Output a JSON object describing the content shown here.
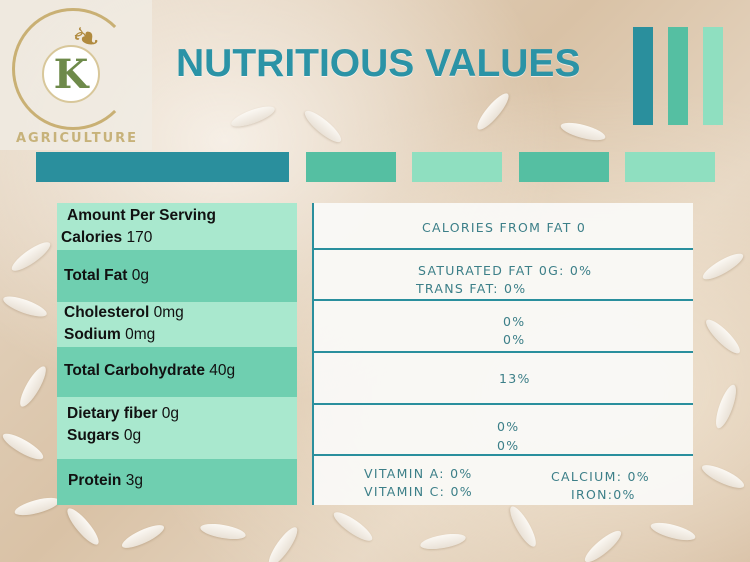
{
  "logo": {
    "letter": "K",
    "text": "AGRICULTURE"
  },
  "title": "NUTRITIOUS VALUES",
  "colors": {
    "teal_dark": "#2a8f9d",
    "teal_mid": "#55bfa2",
    "teal_light": "#8fdfc0",
    "title": "#2b93a6"
  },
  "nutrition": {
    "rows": [
      {
        "lines": [
          {
            "label": "Amount Per Serving",
            "value": ""
          },
          {
            "label": "Calories",
            "value": " 170"
          }
        ]
      },
      {
        "lines": [
          {
            "label": "Total Fat",
            "value": " 0g"
          }
        ]
      },
      {
        "lines": [
          {
            "label": "Cholesterol",
            "value": " 0mg"
          },
          {
            "label": "Sodium",
            "value": " 0mg"
          }
        ]
      },
      {
        "lines": [
          {
            "label": "Total Carbohydrate",
            "value": " 40g"
          }
        ]
      },
      {
        "lines": [
          {
            "label": "Dietary fiber",
            "value": " 0g"
          },
          {
            "label": "Sugars",
            "value": " 0g"
          }
        ]
      },
      {
        "lines": [
          {
            "label": "Protein",
            "value": " 3g"
          }
        ]
      }
    ],
    "details": [
      [
        "CALORIES FROM FAT 0"
      ],
      [
        "SATURATED FAT 0G: 0%",
        "TRANS FAT: 0%"
      ],
      [
        "0%",
        "0%"
      ],
      [
        "13%"
      ],
      [
        "0%",
        "0%"
      ],
      [
        "VITAMIN A: 0%",
        "VITAMIN C: 0%",
        "CALCIUM: 0%",
        "IRON:0%"
      ]
    ]
  }
}
